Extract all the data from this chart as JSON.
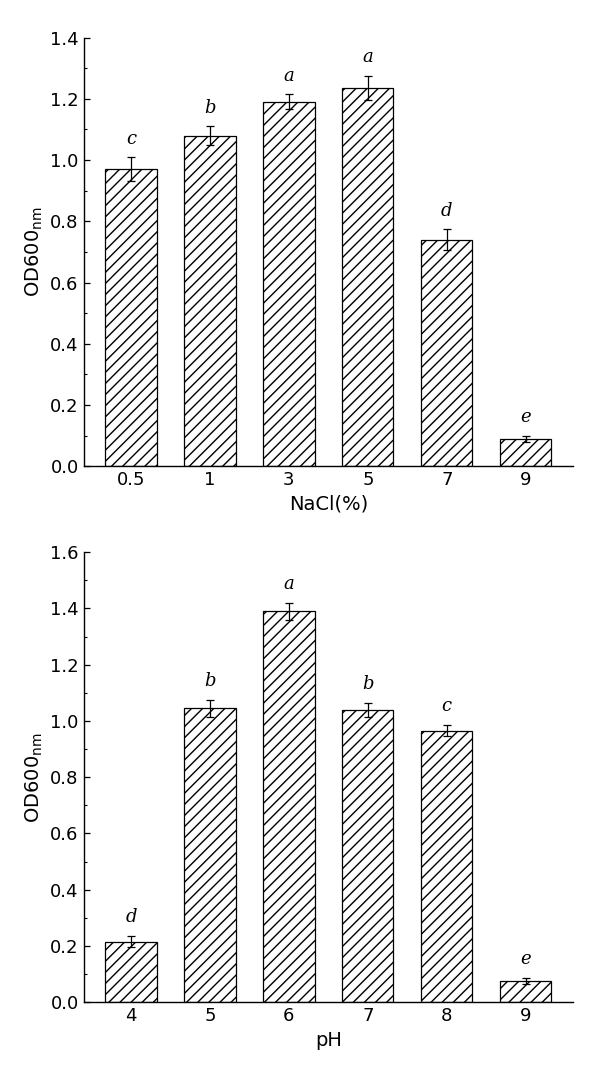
{
  "chart1": {
    "categories": [
      "0.5",
      "1",
      "3",
      "5",
      "7",
      "9"
    ],
    "values": [
      0.97,
      1.08,
      1.19,
      1.235,
      0.74,
      0.09
    ],
    "errors": [
      0.04,
      0.03,
      0.025,
      0.04,
      0.035,
      0.01
    ],
    "letters": [
      "c",
      "b",
      "a",
      "a",
      "d",
      "e"
    ],
    "xlabel": "NaCl(%)",
    "ylabel": "OD600",
    "ylabel_sub": "nm",
    "ylim": [
      0,
      1.4
    ],
    "yticks": [
      0.0,
      0.2,
      0.4,
      0.6,
      0.8,
      1.0,
      1.2,
      1.4
    ]
  },
  "chart2": {
    "categories": [
      "4",
      "5",
      "6",
      "7",
      "8",
      "9"
    ],
    "values": [
      0.215,
      1.045,
      1.39,
      1.04,
      0.965,
      0.075
    ],
    "errors": [
      0.02,
      0.03,
      0.03,
      0.025,
      0.02,
      0.01
    ],
    "letters": [
      "d",
      "b",
      "a",
      "b",
      "c",
      "e"
    ],
    "xlabel": "pH",
    "ylabel": "OD600",
    "ylabel_sub": "nm",
    "ylim": [
      0,
      1.6
    ],
    "yticks": [
      0.0,
      0.2,
      0.4,
      0.6,
      0.8,
      1.0,
      1.2,
      1.4,
      1.6
    ]
  },
  "hatch": "///",
  "bar_color": "white",
  "bar_edgecolor": "black",
  "bar_width": 0.65,
  "background_color": "white",
  "label_fontsize": 14,
  "letter_fontsize": 13,
  "tick_fontsize": 13
}
